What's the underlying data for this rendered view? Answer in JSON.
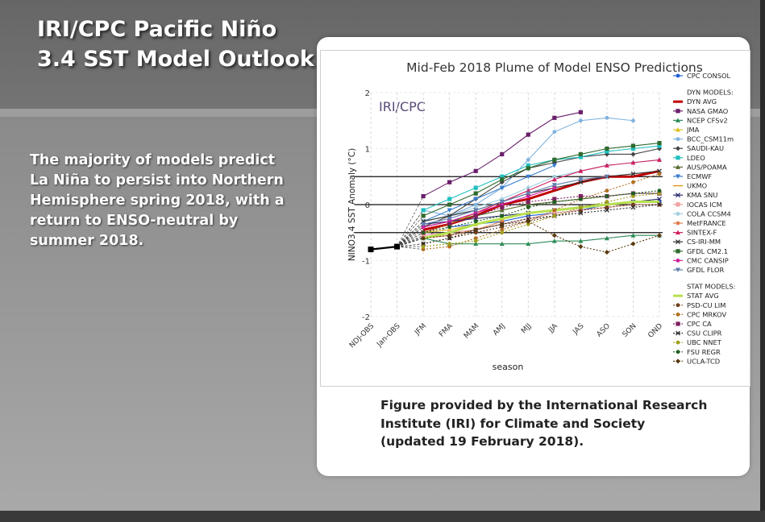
{
  "slide": {
    "title_line1": "IRI/CPC Pacific Niño",
    "title_line2": "3.4 SST Model Outlook",
    "summary": "The majority of models predict La Niña to persist into Northern Hemisphere spring 2018, with a return to ENSO-neutral by summer 2018.",
    "caption_line1": "Figure provided by the International Research",
    "caption_line2": "Institute (IRI) for Climate and Society",
    "caption_line3": "(updated 19 February 2018)."
  },
  "chart_data": {
    "type": "line",
    "title": "Mid-Feb 2018 Plume of Model ENSO Predictions",
    "watermark": "IRI/CPC",
    "xlabel": "season",
    "ylabel": "NINO3.4 SST Anomaly (°C)",
    "ylim": [
      -2,
      2
    ],
    "yticks": [
      2,
      1,
      0,
      -1,
      -2
    ],
    "yticklabels": [
      "2",
      "1",
      "0",
      "-1",
      "-2"
    ],
    "reference_lines": [
      0.5,
      0,
      -0.5
    ],
    "categories": [
      "NDJ-OBS",
      "Jan-OBS",
      "JFM",
      "FMA",
      "MAM",
      "AMJ",
      "MJJ",
      "JJA",
      "JAS",
      "ASO",
      "SON",
      "OND"
    ],
    "observed": {
      "name": "OBS",
      "x": [
        "NDJ-OBS",
        "Jan-OBS"
      ],
      "values": [
        -0.8,
        -0.75
      ]
    },
    "dyn_header": "DYN MODELS:",
    "stat_header": "STAT MODELS:",
    "series": [
      {
        "name": "CPC CONSOL",
        "group": "top",
        "color": "#1f5fd6",
        "style": "solid",
        "marker": "circle",
        "values": [
          null,
          null,
          null,
          -0.4,
          -0.35,
          -0.3,
          -0.2,
          -0.15,
          -0.1,
          0,
          0.05,
          0.05
        ]
      },
      {
        "name": "DYN AVG",
        "group": "dyn",
        "color": "#c00000",
        "style": "thick",
        "marker": "none",
        "values": [
          null,
          null,
          -0.45,
          -0.35,
          -0.2,
          0,
          0.1,
          0.25,
          0.4,
          0.5,
          0.5,
          0.6
        ]
      },
      {
        "name": "NASA GMAO",
        "group": "dyn",
        "color": "#6a1f6a",
        "style": "solid",
        "marker": "square",
        "values": [
          null,
          null,
          0.15,
          0.4,
          0.6,
          0.9,
          1.25,
          1.55,
          1.65,
          null,
          null,
          null
        ]
      },
      {
        "name": "NCEP CFSv2",
        "group": "dyn",
        "color": "#2e8b57",
        "style": "solid",
        "marker": "triangle",
        "values": [
          null,
          null,
          -0.6,
          -0.7,
          -0.7,
          -0.7,
          -0.7,
          -0.65,
          -0.65,
          -0.6,
          -0.55,
          -0.55
        ]
      },
      {
        "name": "JMA",
        "group": "dyn",
        "color": "#e0c020",
        "style": "solid",
        "marker": "triangle",
        "values": [
          null,
          null,
          -0.5,
          -0.45,
          -0.35,
          -0.25,
          -0.15,
          null,
          null,
          null,
          null,
          null
        ]
      },
      {
        "name": "BCC_CSM11m",
        "group": "dyn",
        "color": "#7fb2e0",
        "style": "solid",
        "marker": "circle",
        "values": [
          null,
          null,
          -0.1,
          -0.2,
          0,
          0.3,
          0.8,
          1.3,
          1.5,
          1.55,
          1.5,
          null
        ]
      },
      {
        "name": "SAUDI-KAU",
        "group": "dyn",
        "color": "#444444",
        "style": "solid",
        "marker": "diamond",
        "values": [
          null,
          null,
          -0.4,
          -0.2,
          0.1,
          0.4,
          0.65,
          0.75,
          0.85,
          0.9,
          0.9,
          1
        ]
      },
      {
        "name": "LDEO",
        "group": "dyn",
        "color": "#20c0c0",
        "style": "solid",
        "marker": "square",
        "values": [
          null,
          null,
          -0.1,
          0.1,
          0.3,
          0.5,
          0.7,
          0.8,
          0.85,
          0.95,
          1,
          1.05
        ]
      },
      {
        "name": "AUS/POAMA",
        "group": "dyn",
        "color": "#556b2f",
        "style": "solid",
        "marker": "triangle",
        "values": [
          null,
          null,
          -0.4,
          -0.3,
          -0.2,
          -0.1,
          0,
          0.05,
          0.1,
          0.15,
          0.2,
          0.2
        ]
      },
      {
        "name": "ECMWF",
        "group": "dyn",
        "color": "#3a7fd0",
        "style": "solid",
        "marker": "triangle-down",
        "values": [
          null,
          null,
          -0.3,
          -0.1,
          0.1,
          0.3,
          0.5,
          0.7,
          null,
          null,
          null,
          null
        ]
      },
      {
        "name": "UKMO",
        "group": "dyn",
        "color": "#e08a00",
        "style": "solid",
        "marker": "none",
        "values": [
          null,
          null,
          -0.5,
          -0.35,
          -0.15,
          0.05,
          null,
          null,
          null,
          null,
          null,
          null
        ]
      },
      {
        "name": "KMA SNU",
        "group": "dyn",
        "color": "#2a2a6a",
        "style": "solid",
        "marker": "x",
        "values": [
          null,
          null,
          -0.35,
          -0.3,
          -0.25,
          -0.2,
          -0.15,
          -0.1,
          -0.05,
          0,
          0.05,
          0.1
        ]
      },
      {
        "name": "IOCAS ICM",
        "group": "dyn",
        "color": "#f0a0a0",
        "style": "solid",
        "marker": "square",
        "values": [
          null,
          null,
          -0.55,
          -0.5,
          -0.45,
          -0.35,
          -0.25,
          -0.15,
          -0.1,
          -0.05,
          0,
          0
        ]
      },
      {
        "name": "COLA CCSM4",
        "group": "dyn",
        "color": "#a0d0e0",
        "style": "solid",
        "marker": "circle",
        "values": [
          null,
          null,
          -0.3,
          -0.2,
          -0.05,
          0.1,
          0.3,
          0.5,
          0.6,
          0.7,
          0.75,
          0.8
        ]
      },
      {
        "name": "MetFRANCE",
        "group": "dyn",
        "color": "#e08050",
        "style": "solid",
        "marker": "circle",
        "values": [
          null,
          null,
          -0.6,
          -0.55,
          -0.45,
          -0.3,
          null,
          null,
          null,
          null,
          null,
          null
        ]
      },
      {
        "name": "SINTEX-F",
        "group": "dyn",
        "color": "#d02060",
        "style": "solid",
        "marker": "triangle",
        "values": [
          null,
          null,
          -0.4,
          -0.3,
          -0.15,
          0.05,
          0.25,
          0.45,
          0.6,
          0.7,
          0.75,
          0.8
        ]
      },
      {
        "name": "CS-IRI-MM",
        "group": "dyn",
        "color": "#333333",
        "style": "solid",
        "marker": "x",
        "values": [
          null,
          null,
          -0.3,
          -0.2,
          -0.1,
          0.05,
          0.2,
          0.3,
          0.4,
          0.5,
          0.55,
          0.6
        ]
      },
      {
        "name": "GFDL CM2.1",
        "group": "dyn",
        "color": "#2f6b2f",
        "style": "solid",
        "marker": "square",
        "values": [
          null,
          null,
          -0.2,
          0,
          0.2,
          0.45,
          0.65,
          0.8,
          0.9,
          1,
          1.05,
          1.1
        ]
      },
      {
        "name": "CMC CANSIP",
        "group": "dyn",
        "color": "#d020a0",
        "style": "solid",
        "marker": "circle",
        "values": [
          null,
          null,
          -0.4,
          -0.3,
          -0.15,
          0,
          0.15,
          0.3,
          null,
          null,
          null,
          null
        ]
      },
      {
        "name": "GFDL FLOR",
        "group": "dyn",
        "color": "#6080b0",
        "style": "solid",
        "marker": "triangle-down",
        "values": [
          null,
          null,
          -0.35,
          -0.25,
          -0.1,
          0.05,
          0.2,
          0.35,
          0.45,
          0.5,
          null,
          null
        ]
      },
      {
        "name": "STAT AVG",
        "group": "stat",
        "color": "#b8e050",
        "style": "thick",
        "marker": "none",
        "values": [
          null,
          null,
          -0.6,
          -0.5,
          -0.35,
          -0.25,
          -0.15,
          -0.1,
          -0.05,
          0,
          0.05,
          0.05
        ]
      },
      {
        "name": "PSD-CU LIM",
        "group": "stat",
        "color": "#704020",
        "style": "dotted",
        "marker": "circle",
        "values": [
          null,
          null,
          -0.7,
          -0.6,
          -0.5,
          -0.4,
          -0.3,
          -0.2,
          -0.1,
          -0.05,
          0,
          0
        ]
      },
      {
        "name": "CPC MRKOV",
        "group": "stat",
        "color": "#b07020",
        "style": "dotted",
        "marker": "circle",
        "values": [
          null,
          null,
          -0.8,
          -0.75,
          -0.6,
          -0.45,
          -0.3,
          -0.1,
          0.1,
          0.25,
          0.4,
          0.55
        ]
      },
      {
        "name": "CPC CA",
        "group": "stat",
        "color": "#802060",
        "style": "dotted",
        "marker": "square",
        "values": [
          null,
          null,
          -0.5,
          -0.35,
          -0.2,
          -0.05,
          0.05,
          0.1,
          0.15,
          0.15,
          0.2,
          0.2
        ]
      },
      {
        "name": "CSU CLIPR",
        "group": "stat",
        "color": "#2a2a2a",
        "style": "dotted",
        "marker": "x",
        "values": [
          null,
          null,
          -0.7,
          -0.6,
          -0.45,
          -0.35,
          -0.25,
          -0.2,
          -0.15,
          -0.1,
          -0.05,
          0
        ]
      },
      {
        "name": "UBC NNET",
        "group": "stat",
        "color": "#a0a020",
        "style": "dotted",
        "marker": "circle",
        "values": [
          null,
          null,
          -0.75,
          -0.7,
          -0.65,
          -0.5,
          -0.35,
          -0.2,
          -0.05,
          0.05,
          0.15,
          0.2
        ]
      },
      {
        "name": "FSU REGR",
        "group": "stat",
        "color": "#206020",
        "style": "dotted",
        "marker": "circle",
        "values": [
          null,
          null,
          -0.5,
          -0.4,
          -0.3,
          -0.2,
          -0.05,
          0.05,
          0.1,
          0.15,
          0.2,
          0.25
        ]
      },
      {
        "name": "UCLA-TCD",
        "group": "stat",
        "color": "#5a3a10",
        "style": "dotted",
        "marker": "diamond",
        "values": [
          null,
          null,
          -0.6,
          -0.55,
          -0.45,
          -0.35,
          -0.3,
          -0.55,
          -0.75,
          -0.85,
          -0.7,
          -0.55
        ]
      }
    ]
  }
}
